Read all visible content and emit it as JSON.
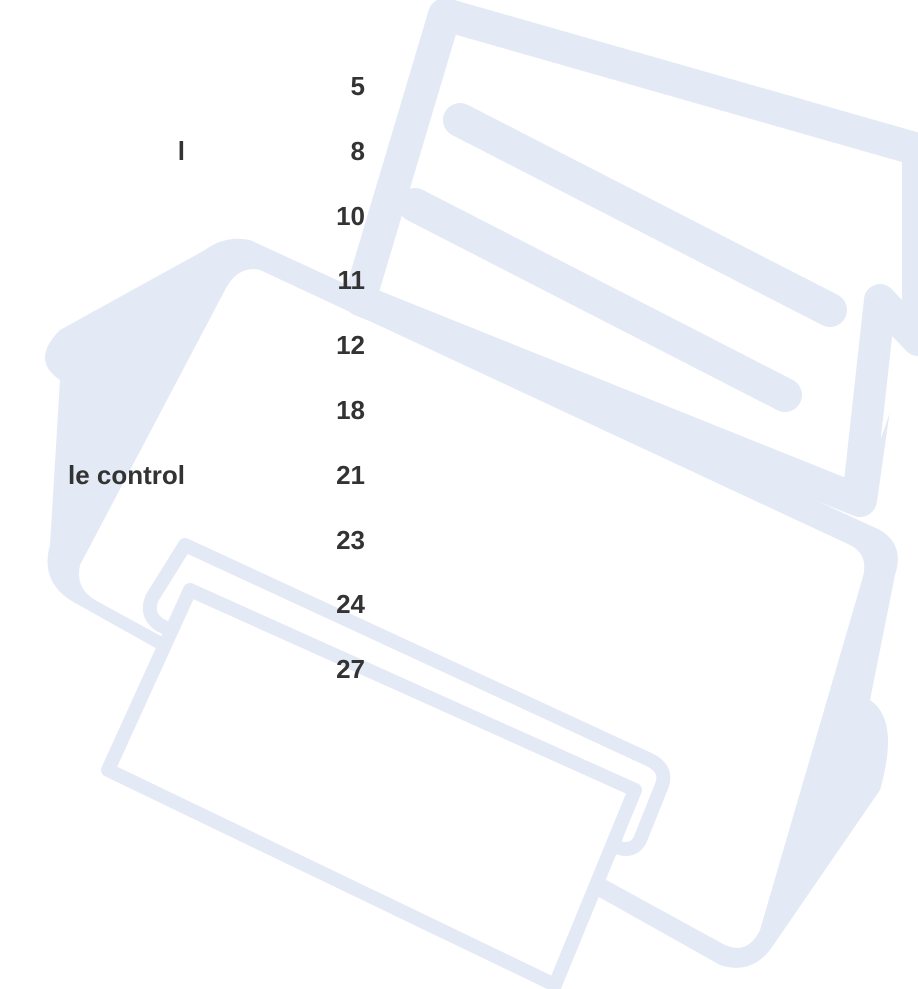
{
  "toc": {
    "entries": [
      {
        "page": "5"
      },
      {
        "title": "l",
        "page": "8"
      },
      {
        "page": "10"
      },
      {
        "page": "11"
      },
      {
        "page": "12"
      },
      {
        "page": "18"
      },
      {
        "title": "le control",
        "page": "21"
      },
      {
        "page": "23"
      },
      {
        "page": "24"
      },
      {
        "page": "27"
      }
    ]
  }
}
